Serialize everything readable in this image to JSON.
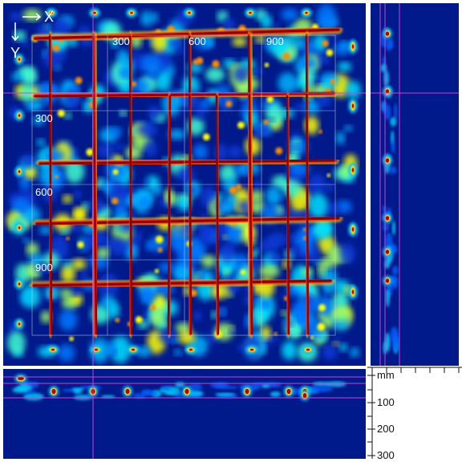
{
  "axes_indicator": {
    "x_label": "X",
    "y_label": "Y",
    "arrow_icon": "right-arrow-icon",
    "down_arrow_icon": "down-arrow-icon"
  },
  "grid_labels": {
    "top": [
      "300",
      "600",
      "900"
    ],
    "left": [
      "300",
      "600",
      "900"
    ]
  },
  "depth_scale": {
    "unit": "mm",
    "labels": [
      "100",
      "200",
      "300"
    ]
  },
  "colors": {
    "background": "#001a8c",
    "crosshair": "#d63cd6",
    "rebar_core": "#8b0000",
    "rebar_edge": "#ff2a00",
    "field_mid": "#00d2ff",
    "field_high": "#ffff00",
    "grid_frame": "#d9d9d9"
  }
}
